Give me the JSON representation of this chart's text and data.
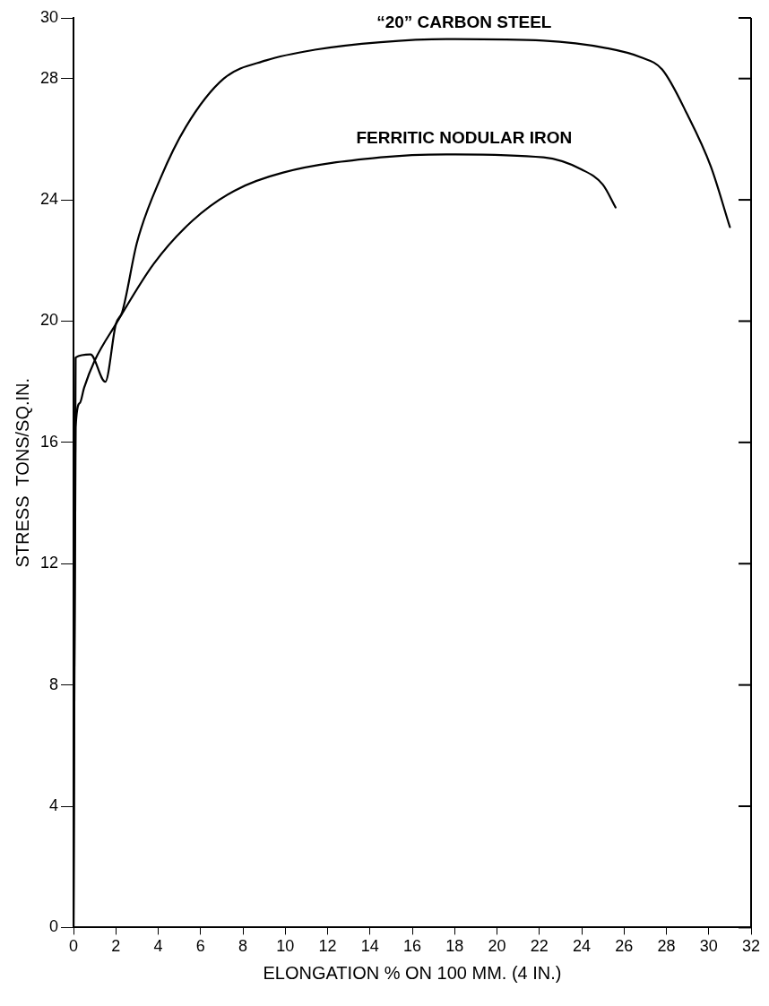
{
  "chart_data": {
    "type": "line",
    "xlabel": "ELONGATION % ON 100 MM. (4 IN.)",
    "ylabel": "STRESS  TONS/SQ.IN.",
    "xlim": [
      0,
      32
    ],
    "ylim": [
      0,
      30
    ],
    "xticks": [
      0,
      2,
      4,
      6,
      8,
      10,
      12,
      14,
      16,
      18,
      20,
      22,
      24,
      26,
      28,
      30,
      32
    ],
    "yticks": [
      0,
      4,
      8,
      12,
      16,
      20,
      24,
      28,
      30
    ],
    "grid": false,
    "legend": false,
    "marker": "none",
    "line_style": "solid",
    "series": [
      {
        "name": "“20” CARBON STEEL",
        "color": "#000000",
        "x": [
          0,
          0.1,
          0.8,
          1.5,
          2.0,
          2.3,
          3.0,
          4.1,
          5.3,
          7.1,
          9.1,
          11.4,
          14.5,
          17.6,
          22.2,
          25.2,
          26.8,
          27.8,
          29.0,
          30.1,
          31.0
        ],
        "values": [
          0,
          18.8,
          18.9,
          18.0,
          19.9,
          20.3,
          22.6,
          24.7,
          26.4,
          28.0,
          28.6,
          28.95,
          29.2,
          29.3,
          29.25,
          29.0,
          28.7,
          28.3,
          26.8,
          25.1,
          23.1
        ]
      },
      {
        "name": "FERRITIC NODULAR IRON",
        "color": "#000000",
        "x": [
          0,
          0.1,
          0.3,
          0.5,
          1.0,
          2.0,
          3.8,
          5.6,
          7.6,
          9.9,
          14.5,
          17.6,
          22.2,
          24.0,
          25.0,
          25.6
        ],
        "values": [
          0,
          16.5,
          17.3,
          17.8,
          18.7,
          19.9,
          21.9,
          23.3,
          24.3,
          24.9,
          25.4,
          25.5,
          25.4,
          25.0,
          24.5,
          23.75
        ]
      }
    ]
  }
}
